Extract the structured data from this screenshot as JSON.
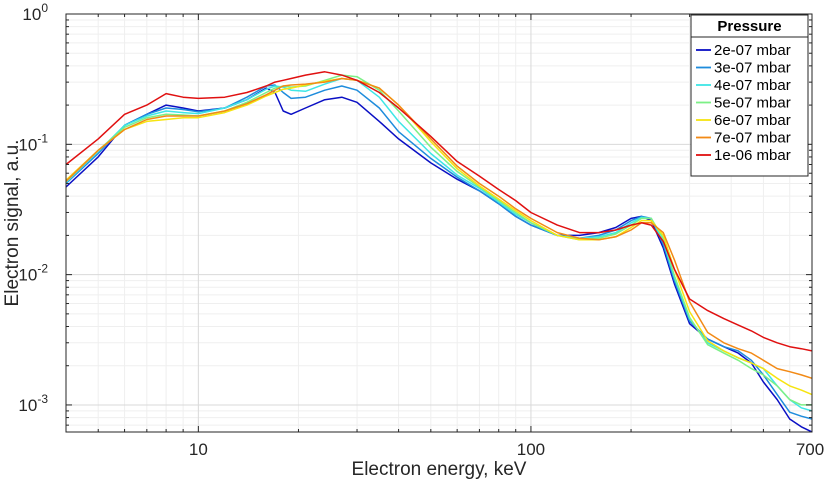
{
  "chart_data": {
    "type": "line",
    "xscale": "log",
    "yscale": "log",
    "xlabel": "Electron energy, keV",
    "ylabel": "Electron signal, a.u.",
    "xlim": [
      4,
      700
    ],
    "ylim": [
      0.00062,
      1
    ],
    "grid": true,
    "legend_position": "top-right",
    "legend_title": "Pressure",
    "x_ticks": [
      {
        "value": 10,
        "label": "10"
      },
      {
        "value": 100,
        "label": "100"
      },
      {
        "value": 700,
        "label": "700"
      }
    ],
    "y_ticks": [
      {
        "value": 1,
        "base": "10",
        "exp": "0"
      },
      {
        "value": 0.1,
        "base": "10",
        "exp": "-1"
      },
      {
        "value": 0.01,
        "base": "10",
        "exp": "-2"
      },
      {
        "value": 0.001,
        "base": "10",
        "exp": "-3"
      }
    ],
    "series": [
      {
        "name": "2e-07 mbar",
        "color": "#0a0fc4",
        "points": [
          [
            4,
            0.047
          ],
          [
            5,
            0.08
          ],
          [
            6,
            0.14
          ],
          [
            7,
            0.17
          ],
          [
            8,
            0.2
          ],
          [
            9,
            0.19
          ],
          [
            10,
            0.18
          ],
          [
            12,
            0.19
          ],
          [
            14,
            0.22
          ],
          [
            16,
            0.27
          ],
          [
            17,
            0.25
          ],
          [
            18,
            0.18
          ],
          [
            19,
            0.17
          ],
          [
            21,
            0.19
          ],
          [
            24,
            0.22
          ],
          [
            27,
            0.23
          ],
          [
            30,
            0.21
          ],
          [
            35,
            0.15
          ],
          [
            40,
            0.11
          ],
          [
            50,
            0.072
          ],
          [
            60,
            0.054
          ],
          [
            70,
            0.044
          ],
          [
            80,
            0.035
          ],
          [
            90,
            0.028
          ],
          [
            100,
            0.024
          ],
          [
            120,
            0.02
          ],
          [
            140,
            0.02
          ],
          [
            160,
            0.021
          ],
          [
            180,
            0.023
          ],
          [
            200,
            0.027
          ],
          [
            215,
            0.028
          ],
          [
            230,
            0.026
          ],
          [
            250,
            0.016
          ],
          [
            270,
            0.0085
          ],
          [
            300,
            0.0042
          ],
          [
            340,
            0.0032
          ],
          [
            380,
            0.0028
          ],
          [
            420,
            0.0025
          ],
          [
            460,
            0.0021
          ],
          [
            500,
            0.0015
          ],
          [
            550,
            0.0011
          ],
          [
            600,
            0.00078
          ],
          [
            650,
            0.00068
          ],
          [
            700,
            0.00062
          ]
        ]
      },
      {
        "name": "3e-07 mbar",
        "color": "#1e8cdc",
        "points": [
          [
            4,
            0.05
          ],
          [
            5,
            0.085
          ],
          [
            6,
            0.14
          ],
          [
            7,
            0.17
          ],
          [
            8,
            0.19
          ],
          [
            9,
            0.185
          ],
          [
            10,
            0.178
          ],
          [
            12,
            0.19
          ],
          [
            14,
            0.23
          ],
          [
            16,
            0.28
          ],
          [
            17,
            0.285
          ],
          [
            18,
            0.25
          ],
          [
            19,
            0.225
          ],
          [
            21,
            0.23
          ],
          [
            24,
            0.26
          ],
          [
            27,
            0.28
          ],
          [
            30,
            0.26
          ],
          [
            35,
            0.19
          ],
          [
            40,
            0.125
          ],
          [
            50,
            0.078
          ],
          [
            60,
            0.056
          ],
          [
            70,
            0.044
          ],
          [
            80,
            0.035
          ],
          [
            90,
            0.028
          ],
          [
            100,
            0.024
          ],
          [
            120,
            0.02
          ],
          [
            140,
            0.019
          ],
          [
            160,
            0.02
          ],
          [
            180,
            0.022
          ],
          [
            200,
            0.026
          ],
          [
            215,
            0.028
          ],
          [
            230,
            0.027
          ],
          [
            250,
            0.017
          ],
          [
            270,
            0.009
          ],
          [
            300,
            0.0044
          ],
          [
            340,
            0.0032
          ],
          [
            380,
            0.0028
          ],
          [
            420,
            0.0026
          ],
          [
            460,
            0.0022
          ],
          [
            500,
            0.0017
          ],
          [
            550,
            0.0012
          ],
          [
            600,
            0.00088
          ],
          [
            650,
            0.00082
          ],
          [
            700,
            0.00078
          ]
        ]
      },
      {
        "name": "4e-07 mbar",
        "color": "#3ee6e6",
        "points": [
          [
            4,
            0.051
          ],
          [
            5,
            0.088
          ],
          [
            6,
            0.14
          ],
          [
            7,
            0.165
          ],
          [
            8,
            0.18
          ],
          [
            9,
            0.175
          ],
          [
            10,
            0.172
          ],
          [
            12,
            0.19
          ],
          [
            14,
            0.22
          ],
          [
            16,
            0.265
          ],
          [
            17,
            0.28
          ],
          [
            18,
            0.275
          ],
          [
            19,
            0.26
          ],
          [
            21,
            0.255
          ],
          [
            24,
            0.29
          ],
          [
            27,
            0.32
          ],
          [
            30,
            0.31
          ],
          [
            35,
            0.23
          ],
          [
            40,
            0.15
          ],
          [
            50,
            0.085
          ],
          [
            60,
            0.058
          ],
          [
            70,
            0.046
          ],
          [
            80,
            0.036
          ],
          [
            90,
            0.029
          ],
          [
            100,
            0.025
          ],
          [
            120,
            0.02
          ],
          [
            140,
            0.019
          ],
          [
            160,
            0.0195
          ],
          [
            180,
            0.021
          ],
          [
            200,
            0.025
          ],
          [
            215,
            0.0275
          ],
          [
            230,
            0.027
          ],
          [
            250,
            0.018
          ],
          [
            270,
            0.0095
          ],
          [
            300,
            0.0046
          ],
          [
            340,
            0.003
          ],
          [
            380,
            0.0026
          ],
          [
            420,
            0.0023
          ],
          [
            460,
            0.0021
          ],
          [
            500,
            0.0019
          ],
          [
            550,
            0.0014
          ],
          [
            600,
            0.0011
          ],
          [
            650,
            0.00095
          ],
          [
            700,
            0.0009
          ]
        ]
      },
      {
        "name": "5e-07 mbar",
        "color": "#7cf086",
        "points": [
          [
            4,
            0.052
          ],
          [
            5,
            0.09
          ],
          [
            6,
            0.135
          ],
          [
            7,
            0.16
          ],
          [
            8,
            0.17
          ],
          [
            9,
            0.168
          ],
          [
            10,
            0.165
          ],
          [
            12,
            0.18
          ],
          [
            14,
            0.21
          ],
          [
            16,
            0.25
          ],
          [
            17,
            0.27
          ],
          [
            18,
            0.28
          ],
          [
            19,
            0.275
          ],
          [
            21,
            0.28
          ],
          [
            24,
            0.31
          ],
          [
            27,
            0.34
          ],
          [
            30,
            0.33
          ],
          [
            35,
            0.26
          ],
          [
            40,
            0.18
          ],
          [
            50,
            0.095
          ],
          [
            60,
            0.062
          ],
          [
            70,
            0.047
          ],
          [
            80,
            0.037
          ],
          [
            90,
            0.03
          ],
          [
            100,
            0.025
          ],
          [
            120,
            0.02
          ],
          [
            140,
            0.0185
          ],
          [
            160,
            0.019
          ],
          [
            180,
            0.0205
          ],
          [
            200,
            0.024
          ],
          [
            215,
            0.027
          ],
          [
            230,
            0.027
          ],
          [
            250,
            0.019
          ],
          [
            270,
            0.0098
          ],
          [
            300,
            0.0047
          ],
          [
            340,
            0.0029
          ],
          [
            380,
            0.0025
          ],
          [
            420,
            0.0022
          ],
          [
            460,
            0.0019
          ],
          [
            500,
            0.0017
          ],
          [
            550,
            0.0014
          ],
          [
            600,
            0.0011
          ],
          [
            650,
            0.001
          ],
          [
            700,
            0.001
          ]
        ]
      },
      {
        "name": "6e-07 mbar",
        "color": "#f6e410",
        "points": [
          [
            4,
            0.053
          ],
          [
            5,
            0.09
          ],
          [
            6,
            0.13
          ],
          [
            7,
            0.15
          ],
          [
            8,
            0.155
          ],
          [
            9,
            0.16
          ],
          [
            10,
            0.16
          ],
          [
            12,
            0.175
          ],
          [
            14,
            0.2
          ],
          [
            16,
            0.235
          ],
          [
            17,
            0.25
          ],
          [
            18,
            0.265
          ],
          [
            19,
            0.27
          ],
          [
            21,
            0.285
          ],
          [
            24,
            0.305
          ],
          [
            27,
            0.32
          ],
          [
            30,
            0.31
          ],
          [
            35,
            0.27
          ],
          [
            40,
            0.2
          ],
          [
            50,
            0.105
          ],
          [
            60,
            0.065
          ],
          [
            70,
            0.048
          ],
          [
            80,
            0.038
          ],
          [
            90,
            0.031
          ],
          [
            100,
            0.026
          ],
          [
            120,
            0.02
          ],
          [
            140,
            0.0185
          ],
          [
            160,
            0.0185
          ],
          [
            180,
            0.0195
          ],
          [
            200,
            0.023
          ],
          [
            215,
            0.026
          ],
          [
            230,
            0.026
          ],
          [
            250,
            0.02
          ],
          [
            270,
            0.011
          ],
          [
            300,
            0.0052
          ],
          [
            340,
            0.0031
          ],
          [
            380,
            0.0026
          ],
          [
            420,
            0.0023
          ],
          [
            460,
            0.0021
          ],
          [
            500,
            0.0019
          ],
          [
            550,
            0.0016
          ],
          [
            600,
            0.0014
          ],
          [
            650,
            0.0013
          ],
          [
            700,
            0.0012
          ]
        ]
      },
      {
        "name": "7e-07 mbar",
        "color": "#f28a16",
        "points": [
          [
            4,
            0.052
          ],
          [
            5,
            0.09
          ],
          [
            6,
            0.13
          ],
          [
            7,
            0.155
          ],
          [
            8,
            0.165
          ],
          [
            9,
            0.165
          ],
          [
            10,
            0.165
          ],
          [
            12,
            0.18
          ],
          [
            14,
            0.205
          ],
          [
            16,
            0.24
          ],
          [
            17,
            0.26
          ],
          [
            18,
            0.28
          ],
          [
            19,
            0.285
          ],
          [
            21,
            0.29
          ],
          [
            24,
            0.3
          ],
          [
            27,
            0.32
          ],
          [
            30,
            0.31
          ],
          [
            35,
            0.27
          ],
          [
            40,
            0.2
          ],
          [
            50,
            0.11
          ],
          [
            60,
            0.068
          ],
          [
            70,
            0.05
          ],
          [
            80,
            0.04
          ],
          [
            90,
            0.032
          ],
          [
            100,
            0.027
          ],
          [
            120,
            0.021
          ],
          [
            140,
            0.019
          ],
          [
            160,
            0.0185
          ],
          [
            180,
            0.0195
          ],
          [
            200,
            0.022
          ],
          [
            215,
            0.025
          ],
          [
            230,
            0.025
          ],
          [
            250,
            0.021
          ],
          [
            270,
            0.013
          ],
          [
            300,
            0.0062
          ],
          [
            340,
            0.0036
          ],
          [
            380,
            0.003
          ],
          [
            420,
            0.0027
          ],
          [
            460,
            0.0025
          ],
          [
            500,
            0.0022
          ],
          [
            550,
            0.0019
          ],
          [
            600,
            0.0018
          ],
          [
            650,
            0.0017
          ],
          [
            700,
            0.0016
          ]
        ]
      },
      {
        "name": "1e-06 mbar",
        "color": "#e01010",
        "points": [
          [
            4,
            0.07
          ],
          [
            5,
            0.11
          ],
          [
            6,
            0.17
          ],
          [
            7,
            0.2
          ],
          [
            8,
            0.245
          ],
          [
            9,
            0.23
          ],
          [
            10,
            0.225
          ],
          [
            12,
            0.23
          ],
          [
            14,
            0.25
          ],
          [
            16,
            0.28
          ],
          [
            17,
            0.3
          ],
          [
            18,
            0.31
          ],
          [
            19,
            0.32
          ],
          [
            21,
            0.34
          ],
          [
            24,
            0.36
          ],
          [
            27,
            0.34
          ],
          [
            30,
            0.31
          ],
          [
            35,
            0.25
          ],
          [
            40,
            0.19
          ],
          [
            50,
            0.115
          ],
          [
            60,
            0.074
          ],
          [
            70,
            0.057
          ],
          [
            80,
            0.045
          ],
          [
            90,
            0.037
          ],
          [
            100,
            0.03
          ],
          [
            120,
            0.024
          ],
          [
            140,
            0.021
          ],
          [
            160,
            0.021
          ],
          [
            180,
            0.022
          ],
          [
            200,
            0.024
          ],
          [
            215,
            0.025
          ],
          [
            230,
            0.024
          ],
          [
            250,
            0.018
          ],
          [
            270,
            0.011
          ],
          [
            300,
            0.0065
          ],
          [
            340,
            0.0053
          ],
          [
            380,
            0.0046
          ],
          [
            420,
            0.0041
          ],
          [
            460,
            0.0037
          ],
          [
            500,
            0.0033
          ],
          [
            550,
            0.003
          ],
          [
            600,
            0.0028
          ],
          [
            650,
            0.0027
          ],
          [
            700,
            0.0026
          ]
        ]
      }
    ]
  }
}
